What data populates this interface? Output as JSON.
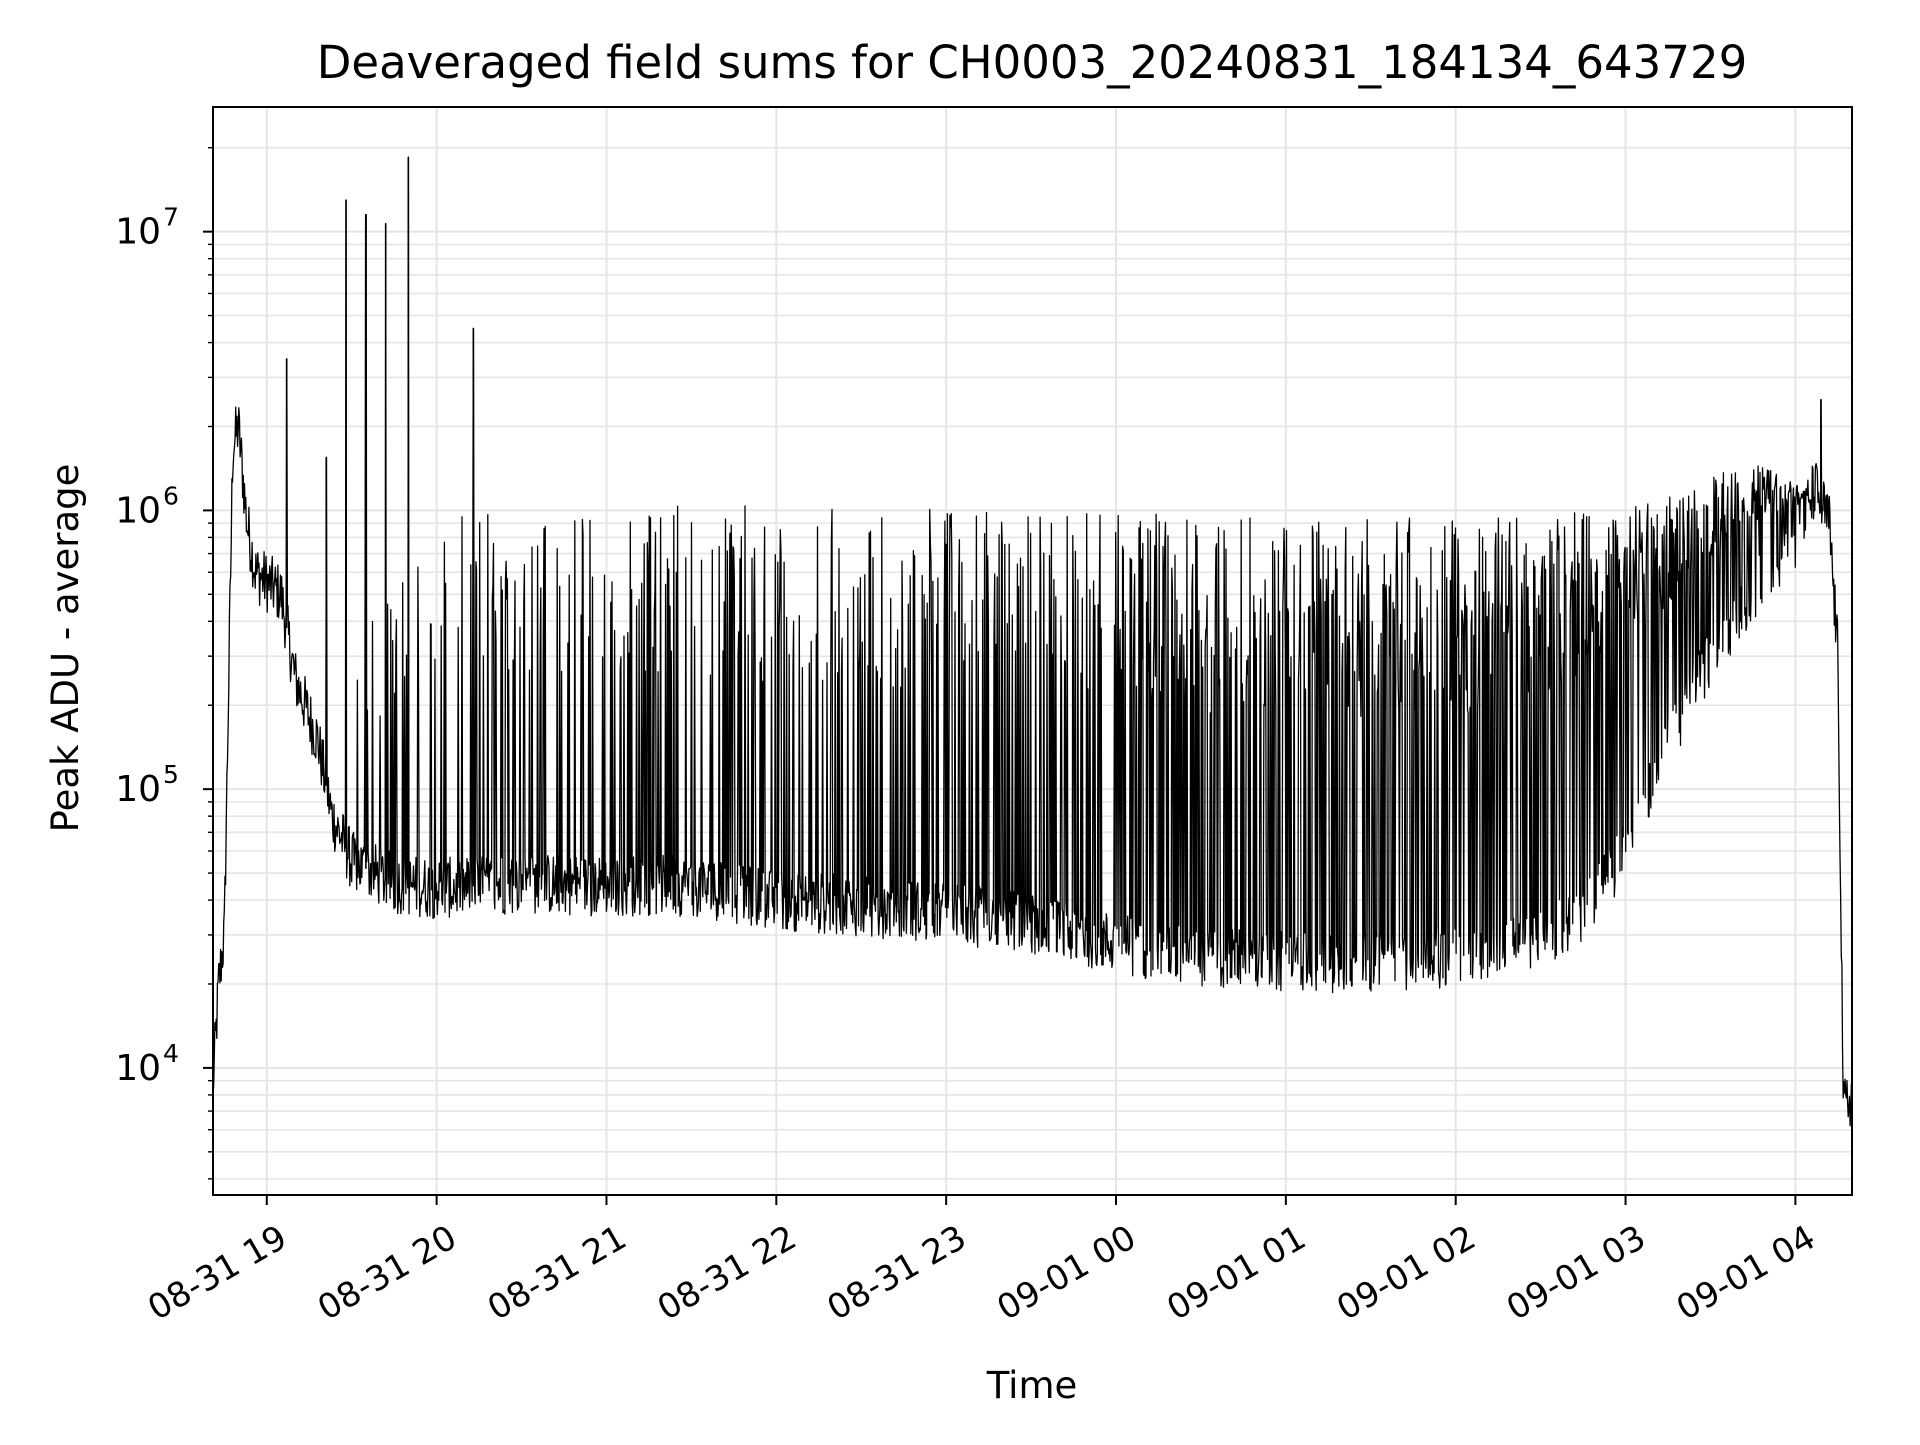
{
  "chart_data": {
    "type": "line",
    "title": "Deaveraged field sums for CH0003_20240831_184134_643729",
    "xlabel": "Time",
    "ylabel": "Peak ADU - average",
    "y_scale": "log",
    "ylim": [
      3500,
      28000000
    ],
    "xlim": [
      "2024-08-31 18:41",
      "2024-09-01 04:20"
    ],
    "grid": true,
    "line_color": "#000000",
    "grid_color": "#e5e5e5",
    "x_ticks": [
      {
        "value": "2024-08-31 19:00",
        "label": "08-31 19"
      },
      {
        "value": "2024-08-31 20:00",
        "label": "08-31 20"
      },
      {
        "value": "2024-08-31 21:00",
        "label": "08-31 21"
      },
      {
        "value": "2024-08-31 22:00",
        "label": "08-31 22"
      },
      {
        "value": "2024-08-31 23:00",
        "label": "08-31 23"
      },
      {
        "value": "2024-09-01 00:00",
        "label": "09-01 00"
      },
      {
        "value": "2024-09-01 01:00",
        "label": "09-01 01"
      },
      {
        "value": "2024-09-01 02:00",
        "label": "09-01 02"
      },
      {
        "value": "2024-09-01 03:00",
        "label": "09-01 03"
      },
      {
        "value": "2024-09-01 04:00",
        "label": "09-01 04"
      }
    ],
    "y_ticks": [
      {
        "value": 10000,
        "base": "10",
        "exp": "4"
      },
      {
        "value": 100000,
        "base": "10",
        "exp": "5"
      },
      {
        "value": 1000000,
        "base": "10",
        "exp": "6"
      },
      {
        "value": 10000000,
        "base": "10",
        "exp": "7"
      }
    ],
    "series": [
      {
        "baseline_envelope": [
          [
            "2024-08-31 18:41",
            8500
          ],
          [
            "2024-08-31 18:43",
            20000
          ],
          [
            "2024-08-31 18:45",
            30000
          ],
          [
            "2024-08-31 18:48",
            1700000
          ],
          [
            "2024-08-31 18:50",
            2000000
          ],
          [
            "2024-08-31 18:53",
            900000
          ],
          [
            "2024-08-31 18:56",
            600000
          ],
          [
            "2024-08-31 19:05",
            500000
          ],
          [
            "2024-08-31 19:10",
            250000
          ],
          [
            "2024-08-31 19:18",
            150000
          ],
          [
            "2024-08-31 19:23",
            80000
          ],
          [
            "2024-08-31 19:30",
            55000
          ],
          [
            "2024-08-31 19:45",
            46000
          ],
          [
            "2024-08-31 20:00",
            44000
          ],
          [
            "2024-08-31 20:30",
            46000
          ],
          [
            "2024-08-31 21:00",
            45000
          ],
          [
            "2024-08-31 21:30",
            45000
          ],
          [
            "2024-08-31 22:00",
            40000
          ],
          [
            "2024-08-31 22:30",
            38000
          ],
          [
            "2024-08-31 23:00",
            36000
          ],
          [
            "2024-08-31 23:30",
            33000
          ],
          [
            "2024-09-01 00:00",
            28000
          ],
          [
            "2024-09-01 00:30",
            25000
          ],
          [
            "2024-09-01 01:00",
            24000
          ],
          [
            "2024-09-01 01:30",
            24000
          ],
          [
            "2024-09-01 02:00",
            25000
          ],
          [
            "2024-09-01 02:30",
            30000
          ],
          [
            "2024-09-01 02:45",
            35000
          ],
          [
            "2024-09-01 03:00",
            60000
          ],
          [
            "2024-09-01 03:15",
            150000
          ],
          [
            "2024-09-01 03:30",
            300000
          ],
          [
            "2024-09-01 03:45",
            500000
          ],
          [
            "2024-09-01 04:00",
            800000
          ],
          [
            "2024-09-01 04:07",
            1200000
          ],
          [
            "2024-09-01 04:12",
            900000
          ],
          [
            "2024-09-01 04:15",
            300000
          ],
          [
            "2024-09-01 04:17",
            7000
          ],
          [
            "2024-09-01 04:20",
            8000
          ]
        ],
        "peak_envelope": [
          [
            "2024-08-31 19:30",
            300000
          ],
          [
            "2024-08-31 20:00",
            1000000
          ],
          [
            "2024-08-31 22:00",
            1050000
          ],
          [
            "2024-09-01 00:00",
            1000000
          ],
          [
            "2024-09-01 01:00",
            950000
          ],
          [
            "2024-09-01 02:00",
            950000
          ],
          [
            "2024-09-01 03:00",
            1000000
          ],
          [
            "2024-09-01 03:45",
            1500000
          ],
          [
            "2024-09-01 04:05",
            1200000
          ]
        ],
        "isolated_spikes": [
          [
            "2024-08-31 19:07",
            3500000
          ],
          [
            "2024-08-31 19:21",
            1550000
          ],
          [
            "2024-08-31 19:28",
            13000000
          ],
          [
            "2024-08-31 19:35",
            11500000
          ],
          [
            "2024-08-31 19:42",
            10700000
          ],
          [
            "2024-08-31 19:50",
            18500000
          ],
          [
            "2024-08-31 20:13",
            4500000
          ],
          [
            "2024-09-01 04:09",
            2500000
          ]
        ]
      }
    ]
  }
}
